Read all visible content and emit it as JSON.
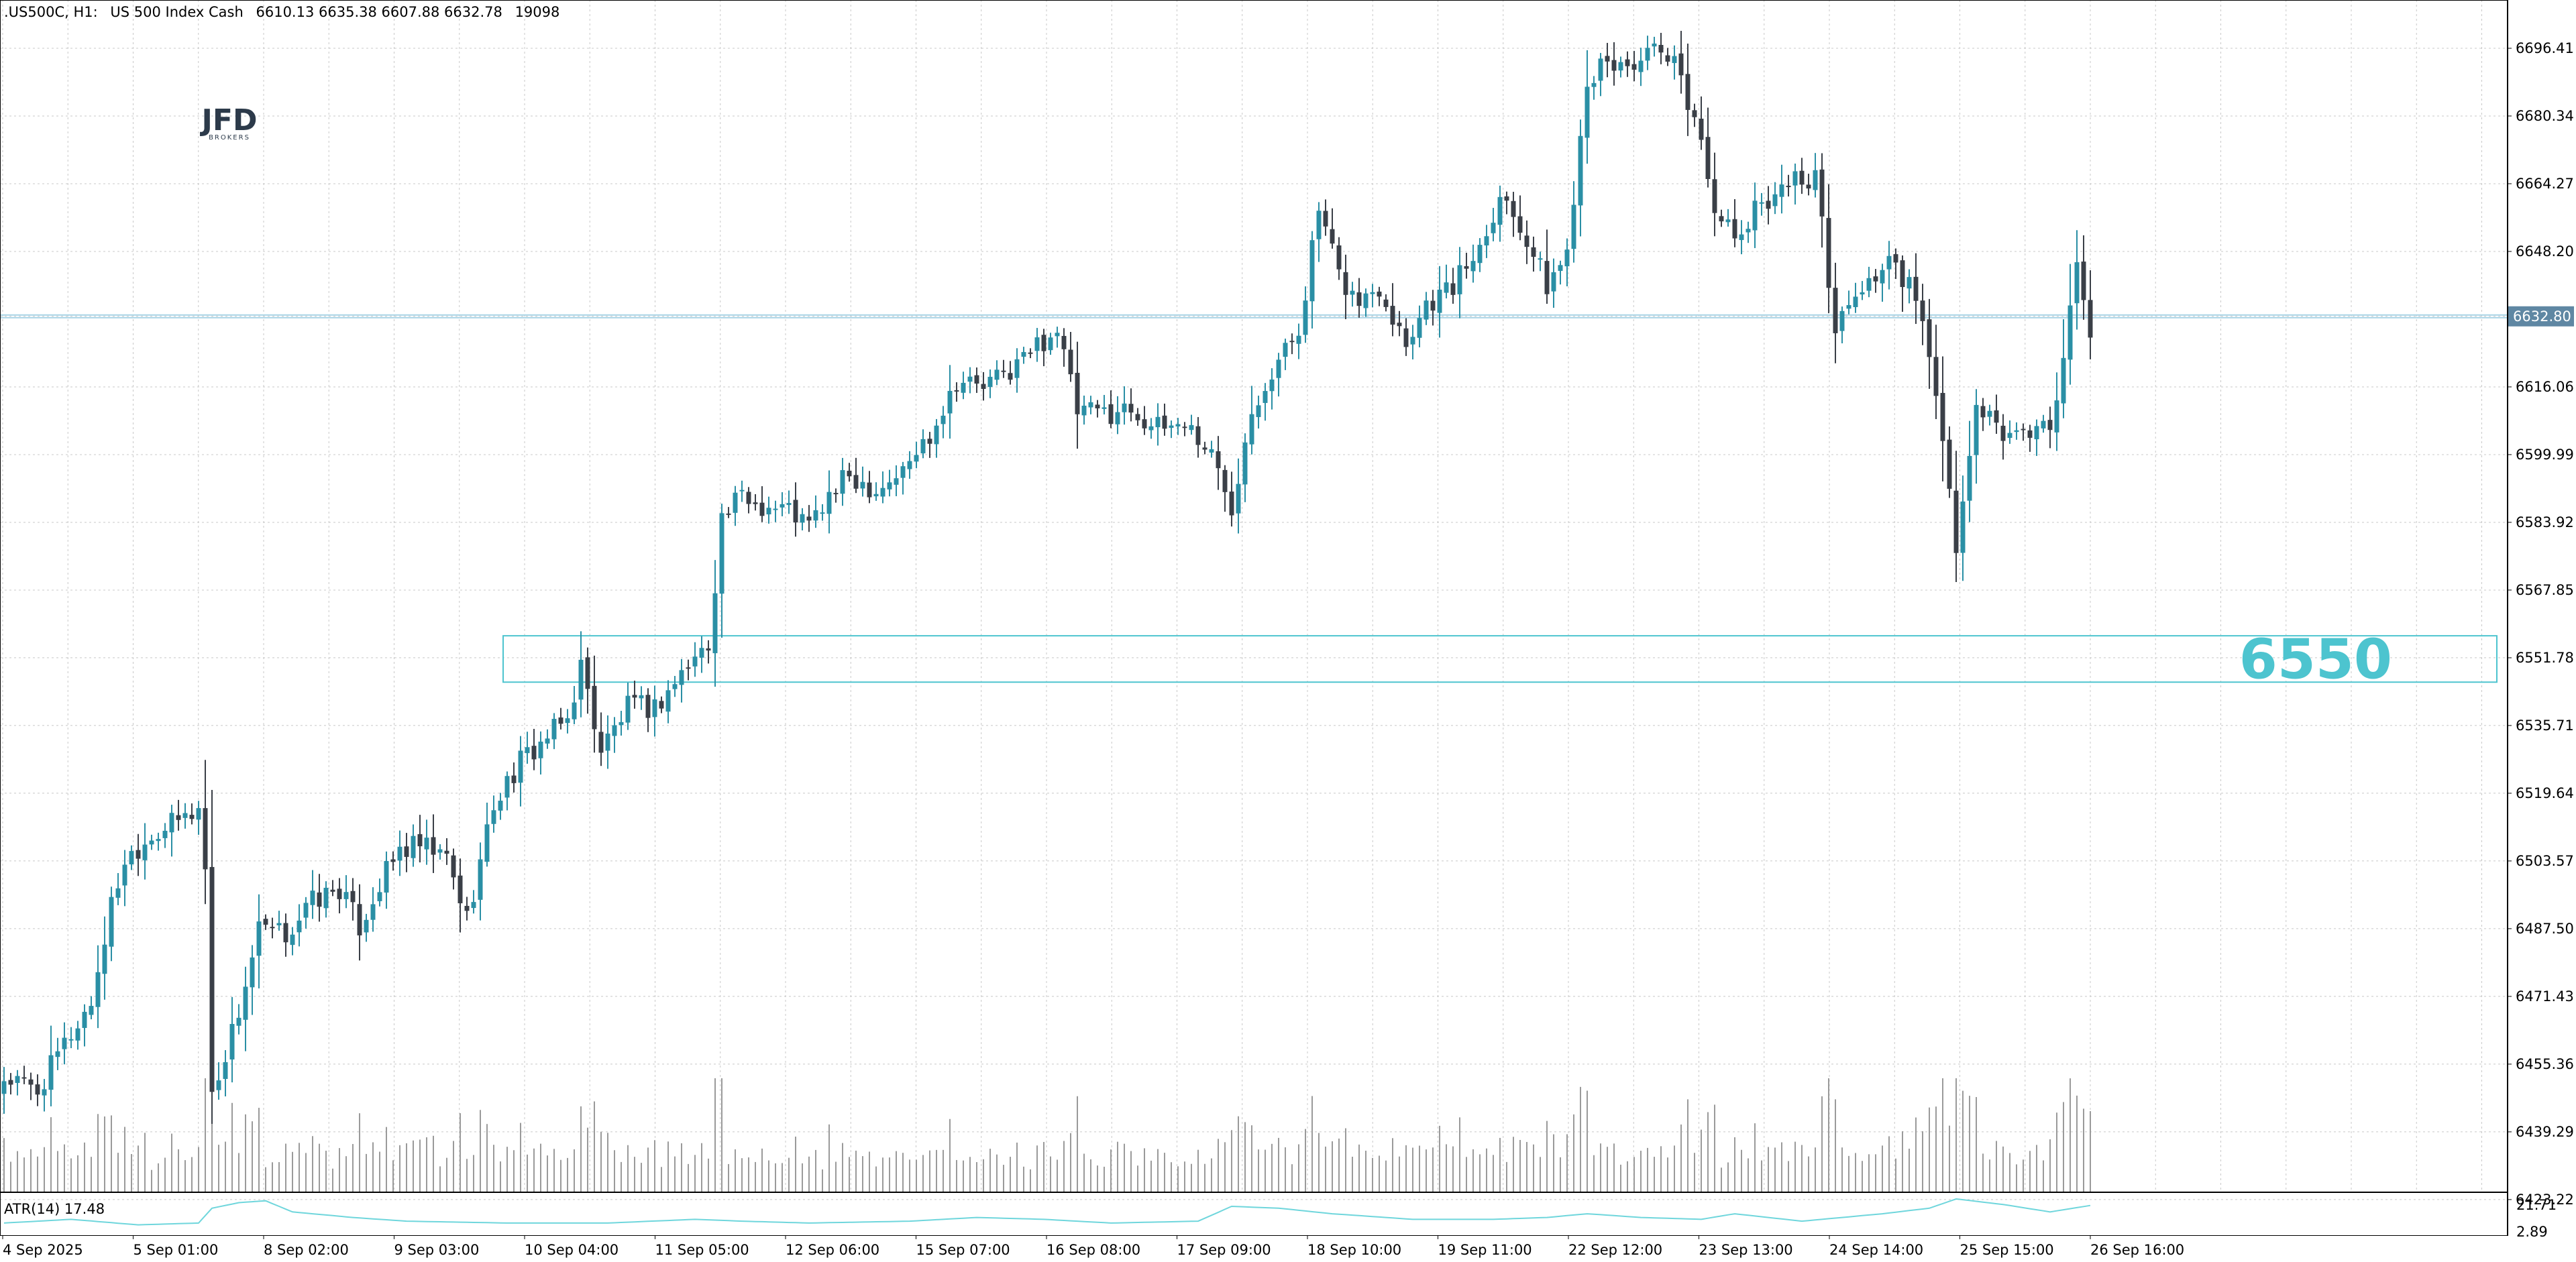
{
  "header": {
    "symbol": ".US500C, H1:",
    "description": "US 500 Index Cash",
    "ohlc": "6610.13 6635.38 6607.88 6632.78",
    "volume": "19098"
  },
  "logo": {
    "main": "JFD",
    "sub": "BROKERS"
  },
  "colors": {
    "bull": "#2a8fa5",
    "bear": "#3a3f47",
    "grid": "#c8c8c8",
    "volume": "#9a9a9a",
    "atr": "#6fd6dc",
    "zone": "#4dc4cf",
    "current_line": "#a8d4e6",
    "price_tag_bg": "#5f87a3"
  },
  "current_price_tag": "6632.80",
  "indicator": {
    "label": "ATR(14) 17.48",
    "ticks": [
      "21.71",
      "2.89"
    ]
  },
  "chart_data": {
    "type": "candlestick",
    "timeframe": "H1",
    "ylim": [
      6431.0,
      6705.0
    ],
    "y_ticks": [
      "6696.41",
      "6680.34",
      "6664.27",
      "6648.20",
      "6632.80",
      "6616.06",
      "6599.99",
      "6583.92",
      "6567.85",
      "6551.78",
      "6535.71",
      "6519.64",
      "6503.57",
      "6487.50",
      "6471.43",
      "6455.36",
      "6439.29",
      "6423.22"
    ],
    "x_ticks": [
      "4 Sep 2025",
      "5 Sep 01:00",
      "8 Sep 02:00",
      "9 Sep 03:00",
      "10 Sep 04:00",
      "11 Sep 05:00",
      "12 Sep 06:00",
      "15 Sep 07:00",
      "16 Sep 08:00",
      "17 Sep 09:00",
      "18 Sep 10:00",
      "19 Sep 11:00",
      "22 Sep 12:00",
      "23 Sep 13:00",
      "24 Sep 14:00",
      "25 Sep 15:00",
      "26 Sep 16:00"
    ],
    "current_price": 6632.8,
    "support_zone": {
      "low": 6546,
      "high": 6557,
      "label": "6550"
    },
    "anchors": [
      [
        0,
        6452
      ],
      [
        5,
        6449
      ],
      [
        9,
        6460
      ],
      [
        13,
        6470
      ],
      [
        16,
        6493
      ],
      [
        18,
        6504
      ],
      [
        22,
        6510
      ],
      [
        26,
        6513
      ],
      [
        29,
        6516
      ],
      [
        30,
        6502
      ],
      [
        31,
        6448
      ],
      [
        35,
        6468
      ],
      [
        38,
        6487
      ],
      [
        42,
        6486
      ],
      [
        46,
        6494
      ],
      [
        50,
        6497
      ],
      [
        53,
        6488
      ],
      [
        56,
        6498
      ],
      [
        59,
        6506
      ],
      [
        62,
        6507
      ],
      [
        66,
        6504
      ],
      [
        69,
        6490
      ],
      [
        73,
        6517
      ],
      [
        77,
        6527
      ],
      [
        81,
        6533
      ],
      [
        84,
        6537
      ],
      [
        86,
        6550
      ],
      [
        89,
        6530
      ],
      [
        93,
        6540
      ],
      [
        97,
        6540
      ],
      [
        102,
        6550
      ],
      [
        105,
        6555
      ],
      [
        107,
        6585
      ],
      [
        110,
        6590
      ],
      [
        113,
        6588
      ],
      [
        117,
        6587
      ],
      [
        120,
        6583
      ],
      [
        123,
        6590
      ],
      [
        126,
        6595
      ],
      [
        130,
        6592
      ],
      [
        134,
        6596
      ],
      [
        138,
        6605
      ],
      [
        142,
        6618
      ],
      [
        146,
        6616
      ],
      [
        150,
        6620
      ],
      [
        154,
        6626
      ],
      [
        157,
        6630
      ],
      [
        160,
        6610
      ],
      [
        164,
        6610
      ],
      [
        168,
        6611
      ],
      [
        172,
        6606
      ],
      [
        176,
        6608
      ],
      [
        180,
        6600
      ],
      [
        183,
        6588
      ],
      [
        186,
        6612
      ],
      [
        190,
        6622
      ],
      [
        193,
        6630
      ],
      [
        196,
        6658
      ],
      [
        199,
        6642
      ],
      [
        202,
        6636
      ],
      [
        205,
        6640
      ],
      [
        209,
        6627
      ],
      [
        212,
        6636
      ],
      [
        216,
        6640
      ],
      [
        220,
        6650
      ],
      [
        223,
        6662
      ],
      [
        226,
        6655
      ],
      [
        230,
        6640
      ],
      [
        233,
        6648
      ],
      [
        236,
        6690
      ],
      [
        239,
        6692
      ],
      [
        243,
        6693
      ],
      [
        246,
        6695
      ],
      [
        249,
        6692
      ],
      [
        252,
        6680
      ],
      [
        255,
        6660
      ],
      [
        258,
        6650
      ],
      [
        262,
        6660
      ],
      [
        266,
        6665
      ],
      [
        270,
        6666
      ],
      [
        273,
        6630
      ],
      [
        277,
        6640
      ],
      [
        281,
        6645
      ],
      [
        284,
        6640
      ],
      [
        287,
        6625
      ],
      [
        291,
        6578
      ],
      [
        294,
        6610
      ],
      [
        298,
        6605
      ],
      [
        302,
        6605
      ],
      [
        306,
        6610
      ],
      [
        309,
        6646
      ],
      [
        311,
        6630
      ]
    ],
    "atr_anchors": [
      [
        0,
        8
      ],
      [
        10,
        10
      ],
      [
        20,
        7
      ],
      [
        29,
        8
      ],
      [
        31,
        16
      ],
      [
        35,
        19
      ],
      [
        39,
        20
      ],
      [
        43,
        14
      ],
      [
        52,
        11
      ],
      [
        60,
        9
      ],
      [
        75,
        8
      ],
      [
        90,
        8
      ],
      [
        103,
        10
      ],
      [
        110,
        9
      ],
      [
        120,
        8
      ],
      [
        135,
        9
      ],
      [
        145,
        11
      ],
      [
        155,
        10
      ],
      [
        165,
        8
      ],
      [
        178,
        9
      ],
      [
        183,
        17
      ],
      [
        190,
        16
      ],
      [
        198,
        13
      ],
      [
        210,
        10
      ],
      [
        222,
        10
      ],
      [
        230,
        11
      ],
      [
        236,
        13
      ],
      [
        244,
        11
      ],
      [
        253,
        10
      ],
      [
        258,
        13
      ],
      [
        268,
        9
      ],
      [
        280,
        13
      ],
      [
        287,
        16
      ],
      [
        291,
        21
      ],
      [
        298,
        18
      ],
      [
        305,
        14
      ],
      [
        311,
        17.48
      ]
    ]
  }
}
